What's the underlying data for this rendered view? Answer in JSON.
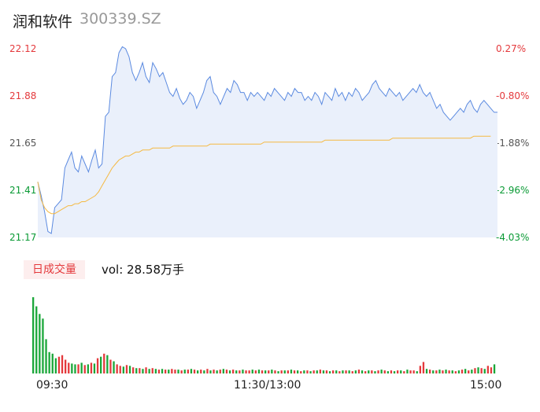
{
  "header": {
    "name": "润和软件",
    "code": "300339.SZ"
  },
  "price_axis": {
    "labels": [
      "22.12",
      "21.88",
      "21.65",
      "21.41",
      "21.17"
    ],
    "pct_labels": [
      "0.27%",
      "-0.80%",
      "-1.88%",
      "-2.96%",
      "-4.03%"
    ]
  },
  "volume": {
    "tag": "日成交量",
    "vol_label": "vol: 28.58万手"
  },
  "time_axis": {
    "labels": [
      "09:30",
      "11:30/13:00",
      "15:00"
    ]
  },
  "colors": {
    "price": "#5b8ae0",
    "avg": "#f5b942",
    "up": "#e4393c",
    "down": "#1aa739",
    "fill": "#eaf0fb"
  },
  "chart_data": [
    {
      "type": "line",
      "title": "",
      "xlabel": "",
      "ylabel": "",
      "ylim": [
        21.17,
        22.12
      ],
      "x_ticks": [
        "09:30",
        "11:30/13:00",
        "15:00"
      ],
      "series": [
        {
          "values": [
            21.45,
            21.38,
            21.3,
            21.2,
            21.19,
            21.32,
            21.34,
            21.36,
            21.52,
            21.56,
            21.6,
            21.52,
            21.5,
            21.58,
            21.54,
            21.5,
            21.56,
            21.61,
            21.52,
            21.54,
            21.78,
            21.8,
            21.98,
            22.0,
            22.1,
            22.13,
            22.12,
            22.08,
            22.0,
            21.96,
            22.0,
            22.05,
            21.98,
            21.95,
            22.05,
            22.02,
            21.98,
            22.0,
            21.95,
            21.9,
            21.88,
            21.92,
            21.87,
            21.84,
            21.86,
            21.9,
            21.88,
            21.82,
            21.86,
            21.9,
            21.96,
            21.98,
            21.9,
            21.88,
            21.84,
            21.88,
            21.92,
            21.9,
            21.96,
            21.94,
            21.9,
            21.9,
            21.86,
            21.9,
            21.88,
            21.9,
            21.88,
            21.86,
            21.9,
            21.88,
            21.92,
            21.9,
            21.88,
            21.86,
            21.9,
            21.88,
            21.92,
            21.9,
            21.9,
            21.86,
            21.88,
            21.86,
            21.9,
            21.88,
            21.84,
            21.9,
            21.88,
            21.86,
            21.92,
            21.88,
            21.9,
            21.86,
            21.9,
            21.88,
            21.92,
            21.9,
            21.86,
            21.88,
            21.9,
            21.94,
            21.96,
            21.92,
            21.9,
            21.88,
            21.92,
            21.9,
            21.88,
            21.9,
            21.86,
            21.88,
            21.9,
            21.92,
            21.9,
            21.94,
            21.9,
            21.88,
            21.9,
            21.86,
            21.82,
            21.84,
            21.8,
            21.78,
            21.76,
            21.78,
            21.8,
            21.82,
            21.8,
            21.84,
            21.86,
            21.82,
            21.8,
            21.84,
            21.86,
            21.84,
            21.82,
            21.8,
            21.8
          ],
          "note": ""
        },
        {
          "values": [
            21.45,
            21.36,
            21.32,
            21.3,
            21.29,
            21.29,
            21.3,
            21.31,
            21.32,
            21.33,
            21.33,
            21.34,
            21.34,
            21.35,
            21.35,
            21.36,
            21.37,
            21.38,
            21.4,
            21.43,
            21.46,
            21.49,
            21.52,
            21.54,
            21.56,
            21.57,
            21.58,
            21.58,
            21.59,
            21.6,
            21.6,
            21.61,
            21.61,
            21.61,
            21.62,
            21.62,
            21.62,
            21.62,
            21.62,
            21.62,
            21.63,
            21.63,
            21.63,
            21.63,
            21.63,
            21.63,
            21.63,
            21.63,
            21.63,
            21.63,
            21.63,
            21.64,
            21.64,
            21.64,
            21.64,
            21.64,
            21.64,
            21.64,
            21.64,
            21.64,
            21.64,
            21.64,
            21.64,
            21.64,
            21.64,
            21.64,
            21.64,
            21.65,
            21.65,
            21.65,
            21.65,
            21.65,
            21.65,
            21.65,
            21.65,
            21.65,
            21.65,
            21.65,
            21.65,
            21.65,
            21.65,
            21.65,
            21.65,
            21.65,
            21.65,
            21.66,
            21.66,
            21.66,
            21.66,
            21.66,
            21.66,
            21.66,
            21.66,
            21.66,
            21.66,
            21.66,
            21.66,
            21.66,
            21.66,
            21.66,
            21.66,
            21.66,
            21.66,
            21.66,
            21.66,
            21.67,
            21.67,
            21.67,
            21.67,
            21.67,
            21.67,
            21.67,
            21.67,
            21.67,
            21.67,
            21.67,
            21.67,
            21.67,
            21.67,
            21.67,
            21.67,
            21.67,
            21.67,
            21.67,
            21.67,
            21.67,
            21.67,
            21.67,
            21.67,
            21.68,
            21.68,
            21.68,
            21.68,
            21.68,
            21.68
          ],
          "note": ""
        }
      ]
    },
    {
      "type": "bar",
      "title": "",
      "ylim": [
        0,
        100
      ],
      "values": [
        100,
        88,
        78,
        72,
        45,
        28,
        26,
        20,
        22,
        24,
        18,
        14,
        13,
        12,
        12,
        14,
        11,
        12,
        14,
        13,
        20,
        22,
        26,
        24,
        18,
        16,
        12,
        10,
        9,
        11,
        10,
        8,
        7,
        7,
        6,
        8,
        6,
        7,
        6,
        5,
        6,
        5,
        5,
        6,
        5,
        5,
        4,
        5,
        5,
        6,
        5,
        4,
        5,
        4,
        6,
        4,
        5,
        4,
        5,
        6,
        5,
        4,
        5,
        4,
        4,
        5,
        4,
        4,
        5,
        4,
        5,
        4,
        4,
        4,
        5,
        4,
        3,
        4,
        4,
        4,
        5,
        4,
        4,
        3,
        4,
        4,
        3,
        4,
        4,
        5,
        4,
        4,
        3,
        4,
        4,
        3,
        4,
        4,
        4,
        3,
        4,
        5,
        4,
        3,
        4,
        4,
        3,
        4,
        5,
        4,
        3,
        4,
        3,
        4,
        4,
        3,
        5,
        4,
        4,
        3,
        10,
        15,
        6,
        5,
        4,
        4,
        5,
        4,
        5,
        4,
        4,
        3,
        4,
        5,
        6,
        4,
        5,
        7,
        8,
        7,
        6,
        10,
        8,
        12
      ],
      "direction": [
        "d",
        "d",
        "d",
        "d",
        "d",
        "d",
        "d",
        "d",
        "u",
        "u",
        "u",
        "u",
        "d",
        "d",
        "u",
        "d",
        "u",
        "d",
        "u",
        "d",
        "u",
        "d",
        "u",
        "d",
        "u",
        "d",
        "u",
        "u",
        "d",
        "u",
        "d",
        "u",
        "d",
        "u",
        "d",
        "u",
        "d",
        "u",
        "d",
        "u",
        "d",
        "u",
        "d",
        "u",
        "u",
        "d",
        "u",
        "d",
        "u",
        "d",
        "u",
        "d",
        "u",
        "d",
        "u",
        "d",
        "u",
        "d",
        "u",
        "d",
        "u",
        "d",
        "u",
        "d",
        "u",
        "d",
        "u",
        "u",
        "d",
        "u",
        "d",
        "u",
        "d",
        "u",
        "d",
        "u",
        "d",
        "u",
        "d",
        "u",
        "d",
        "u",
        "d",
        "u",
        "d",
        "u",
        "d",
        "u",
        "d",
        "u",
        "d",
        "u",
        "d",
        "u",
        "d",
        "u",
        "d",
        "u",
        "d",
        "u",
        "d",
        "u",
        "d",
        "u",
        "d",
        "u",
        "d",
        "u",
        "d",
        "u",
        "d",
        "u",
        "d",
        "u",
        "d",
        "u",
        "d",
        "u",
        "u",
        "d",
        "u",
        "u",
        "d",
        "u",
        "d",
        "u",
        "d",
        "u",
        "d",
        "u",
        "d",
        "u",
        "d",
        "u",
        "d",
        "u",
        "d",
        "u",
        "d",
        "u",
        "d",
        "u",
        "u",
        "d"
      ]
    }
  ]
}
